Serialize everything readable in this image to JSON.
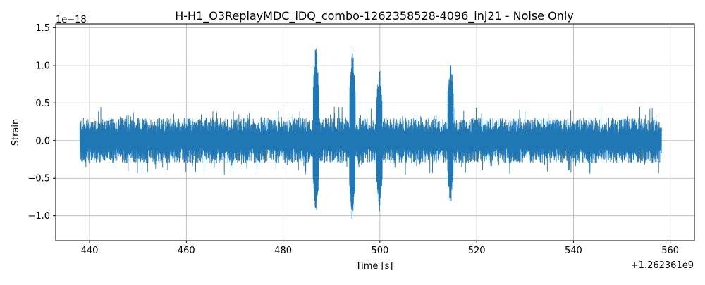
{
  "chart_data": {
    "type": "line",
    "title": "H-H1_O3ReplayMDC_iDQ_combo-1262358528-4096_inj21 - Noise Only",
    "xlabel": "Time [s]",
    "ylabel": "Strain",
    "x_offset_label": "+1.262361e9",
    "y_scale_label": "1e−18",
    "xlim": [
      433,
      565
    ],
    "ylim": [
      -1.33,
      1.55
    ],
    "x_ticks": [
      440,
      460,
      480,
      500,
      520,
      540,
      560
    ],
    "x_tick_labels": [
      "440",
      "460",
      "480",
      "500",
      "520",
      "540",
      "560"
    ],
    "y_ticks": [
      -1.0,
      -0.5,
      0.0,
      0.5,
      1.0,
      1.5
    ],
    "y_tick_labels": [
      "−1.0",
      "−0.5",
      "0.0",
      "0.5",
      "1.0",
      "1.5"
    ],
    "grid": true,
    "line_color": "#1f77b4",
    "series": [
      {
        "x_range": [
          438.0,
          558.2
        ],
        "noise_amplitude": 0.3,
        "bursts": [
          {
            "x": 486.8,
            "max": 1.41,
            "min": -1.03
          },
          {
            "x": 494.3,
            "max": 1.32,
            "min": -1.17
          },
          {
            "x": 499.9,
            "max": 1.03,
            "min": -0.95
          },
          {
            "x": 514.6,
            "max": 1.17,
            "min": -0.9
          }
        ]
      }
    ]
  }
}
